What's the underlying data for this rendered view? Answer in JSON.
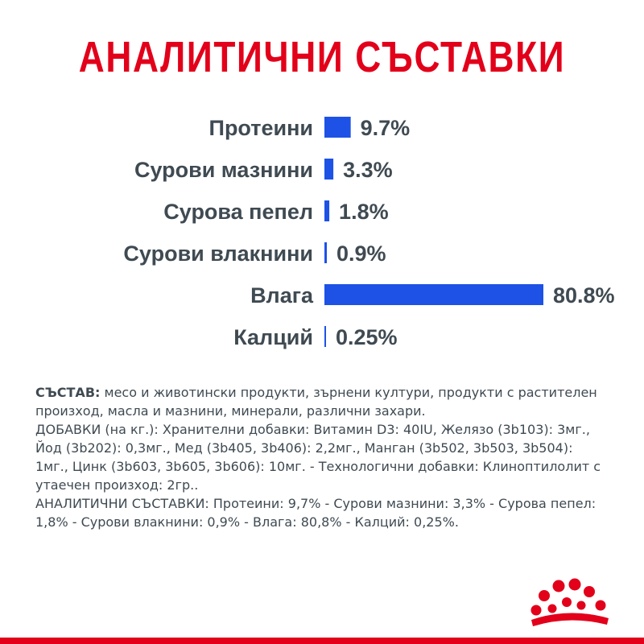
{
  "title": "АНАЛИТИЧНИ СЪСТАВКИ",
  "chart_data": {
    "type": "bar",
    "orientation": "horizontal",
    "categories": [
      "Протеини",
      "Сурови мазнини",
      "Сурова пепел",
      "Сурови влакнини",
      "Влага",
      "Калций"
    ],
    "values": [
      9.7,
      3.3,
      1.8,
      0.9,
      80.8,
      0.25
    ],
    "value_labels": [
      "9.7%",
      "3.3%",
      "1.8%",
      "0.9%",
      "80.8%",
      "0.25%"
    ],
    "unit": "%",
    "bar_color": "#1e52e6",
    "grid": false,
    "legend": "none"
  },
  "composition": {
    "label": "СЪСТАВ:",
    "line1": " месо и животински продукти, зърнени култури, продукти с растителен произход, масла и мазнини, минерали, различни захари.",
    "line2": "ДОБАВКИ (на кг.): Хранителни добавки: Витамин D3: 40IU, Желязо (3b103): 3мг., Йод (3b202): 0,3мг., Мед (3b405, 3b406): 2,2мг., Манган (3b502, 3b503, 3b504): 1мг., Цинк (3b603, 3b605, 3b606): 10мг. - Технологични добавки: Клиноптилолит с утаечен произход: 2гр..",
    "line3": "АНАЛИТИЧНИ СЪСТАВКИ: Протеини: 9,7% - Сурови мазнини: 3,3% - Сурова пепел: 1,8% - Сурови влакнини: 0,9% - Влага: 80,8% - Калций: 0,25%."
  },
  "colors": {
    "title": "#e2001a",
    "text": "#3f4a52",
    "accent_bar": "#e2001a",
    "chart_bar": "#1e52e6"
  },
  "logo": {
    "icon": "royal-canin-crown-logo"
  }
}
